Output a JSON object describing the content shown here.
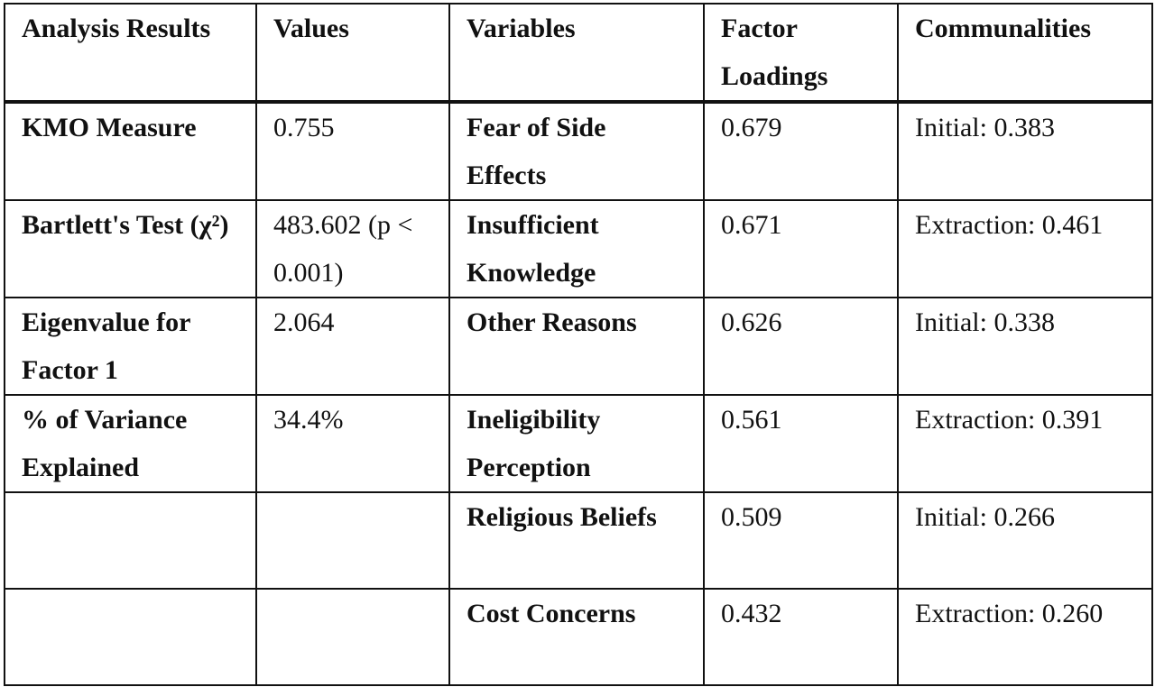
{
  "table": {
    "header": [
      "Analysis Results",
      "Values",
      "Variables",
      "Factor Loadings",
      "Communalities"
    ],
    "rows": [
      [
        "KMO Measure",
        "0.755",
        "Fear of Side Effects",
        "0.679",
        "Initial: 0.383"
      ],
      [
        "Bartlett's Test (χ²)",
        "483.602 (p < 0.001)",
        "Insufficient Knowledge",
        "0.671",
        "Extraction: 0.461"
      ],
      [
        "Eigenvalue for Factor 1",
        "2.064",
        "Other Reasons",
        "0.626",
        "Initial: 0.338"
      ],
      [
        "% of Variance Explained",
        "34.4%",
        "Ineligibility Perception",
        "0.561",
        "Extraction: 0.391"
      ],
      [
        null,
        null,
        "Religious Beliefs",
        "0.509",
        "Initial: 0.266"
      ],
      [
        null,
        null,
        "Cost Concerns",
        "0.432",
        "Extraction: 0.260"
      ]
    ]
  }
}
